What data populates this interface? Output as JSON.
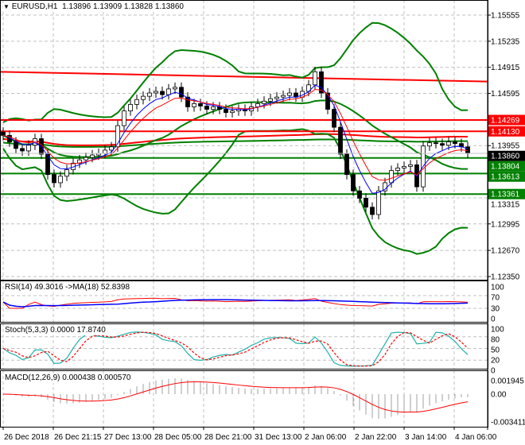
{
  "header": {
    "symbol": "EURUSD,H1",
    "ohlc": "1.13896 1.13909 1.13828 1.13860"
  },
  "indicators": {
    "rsi": "RSI(14) 49.3016  ->MA(18) 52.8398",
    "stoch": "Stoch(5,3,3) 0.0000 17.8740",
    "macd": "MACD(12,26,9) 0.000438 0.000570"
  },
  "colors": {
    "bull": "#ffffff",
    "bear": "#000000",
    "bands": "#008000",
    "level_red": "#ff0000",
    "level_green": "#008000",
    "ma_fast": "#0000ff",
    "ma_slow": "#ff0000",
    "stoch_main": "#20b2aa"
  },
  "chart_data": {
    "type": "candlestick",
    "symbol": "EURUSD",
    "timeframe": "H1",
    "ylim": [
      1.1235,
      1.1572
    ],
    "price_ticks": [
      "1.15555",
      "1.15235",
      "1.14915",
      "1.14595",
      "1.13955",
      "1.13315",
      "1.12995",
      "1.12670",
      "1.12350"
    ],
    "current_price": "1.13860",
    "levels": [
      {
        "price": "1.14269",
        "color": "red"
      },
      {
        "price": "1.14130",
        "color": "red"
      },
      {
        "price": "1.13804",
        "color": "green"
      },
      {
        "price": "1.13613",
        "color": "green"
      },
      {
        "price": "1.13361",
        "color": "green"
      }
    ],
    "trendline": {
      "from": 1.1486,
      "to": 1.1474,
      "color": "red"
    },
    "time_labels": [
      "26 Dec 2018",
      "26 Dec 21:15",
      "27 Dec 13:00",
      "28 Dec 05:00",
      "28 Dec 21:00",
      "31 Dec 13:00",
      "2 Jan 06:00",
      "2 Jan 22:00",
      "3 Jan 14:00",
      "4 Jan 06:00"
    ],
    "closes": [
      1.1408,
      1.14,
      1.1392,
      1.1389,
      1.1396,
      1.1404,
      1.1385,
      1.136,
      1.135,
      1.1358,
      1.1366,
      1.1374,
      1.1378,
      1.1381,
      1.1384,
      1.1386,
      1.139,
      1.1394,
      1.142,
      1.1438,
      1.1446,
      1.1452,
      1.1456,
      1.146,
      1.1462,
      1.1458,
      1.1465,
      1.1467,
      1.1455,
      1.1443,
      1.1447,
      1.1444,
      1.144,
      1.1443,
      1.144,
      1.1436,
      1.1438,
      1.144,
      1.1438,
      1.1443,
      1.1447,
      1.145,
      1.1453,
      1.1455,
      1.1457,
      1.146,
      1.1455,
      1.1462,
      1.147,
      1.1486,
      1.146,
      1.144,
      1.1418,
      1.1385,
      1.136,
      1.134,
      1.1331,
      1.132,
      1.1311,
      1.134,
      1.135,
      1.1365,
      1.1368,
      1.137,
      1.1372,
      1.1345,
      1.1395,
      1.1399,
      1.1398,
      1.1396,
      1.14,
      1.1398,
      1.1394,
      1.1386
    ],
    "rsi_ticks": [
      "100",
      "70",
      "30",
      "0"
    ],
    "stoch_ticks": [
      "100",
      "80",
      "50",
      "20",
      "0"
    ],
    "macd_ticks": [
      "0.001945",
      "0.00",
      "-0.003411"
    ]
  }
}
